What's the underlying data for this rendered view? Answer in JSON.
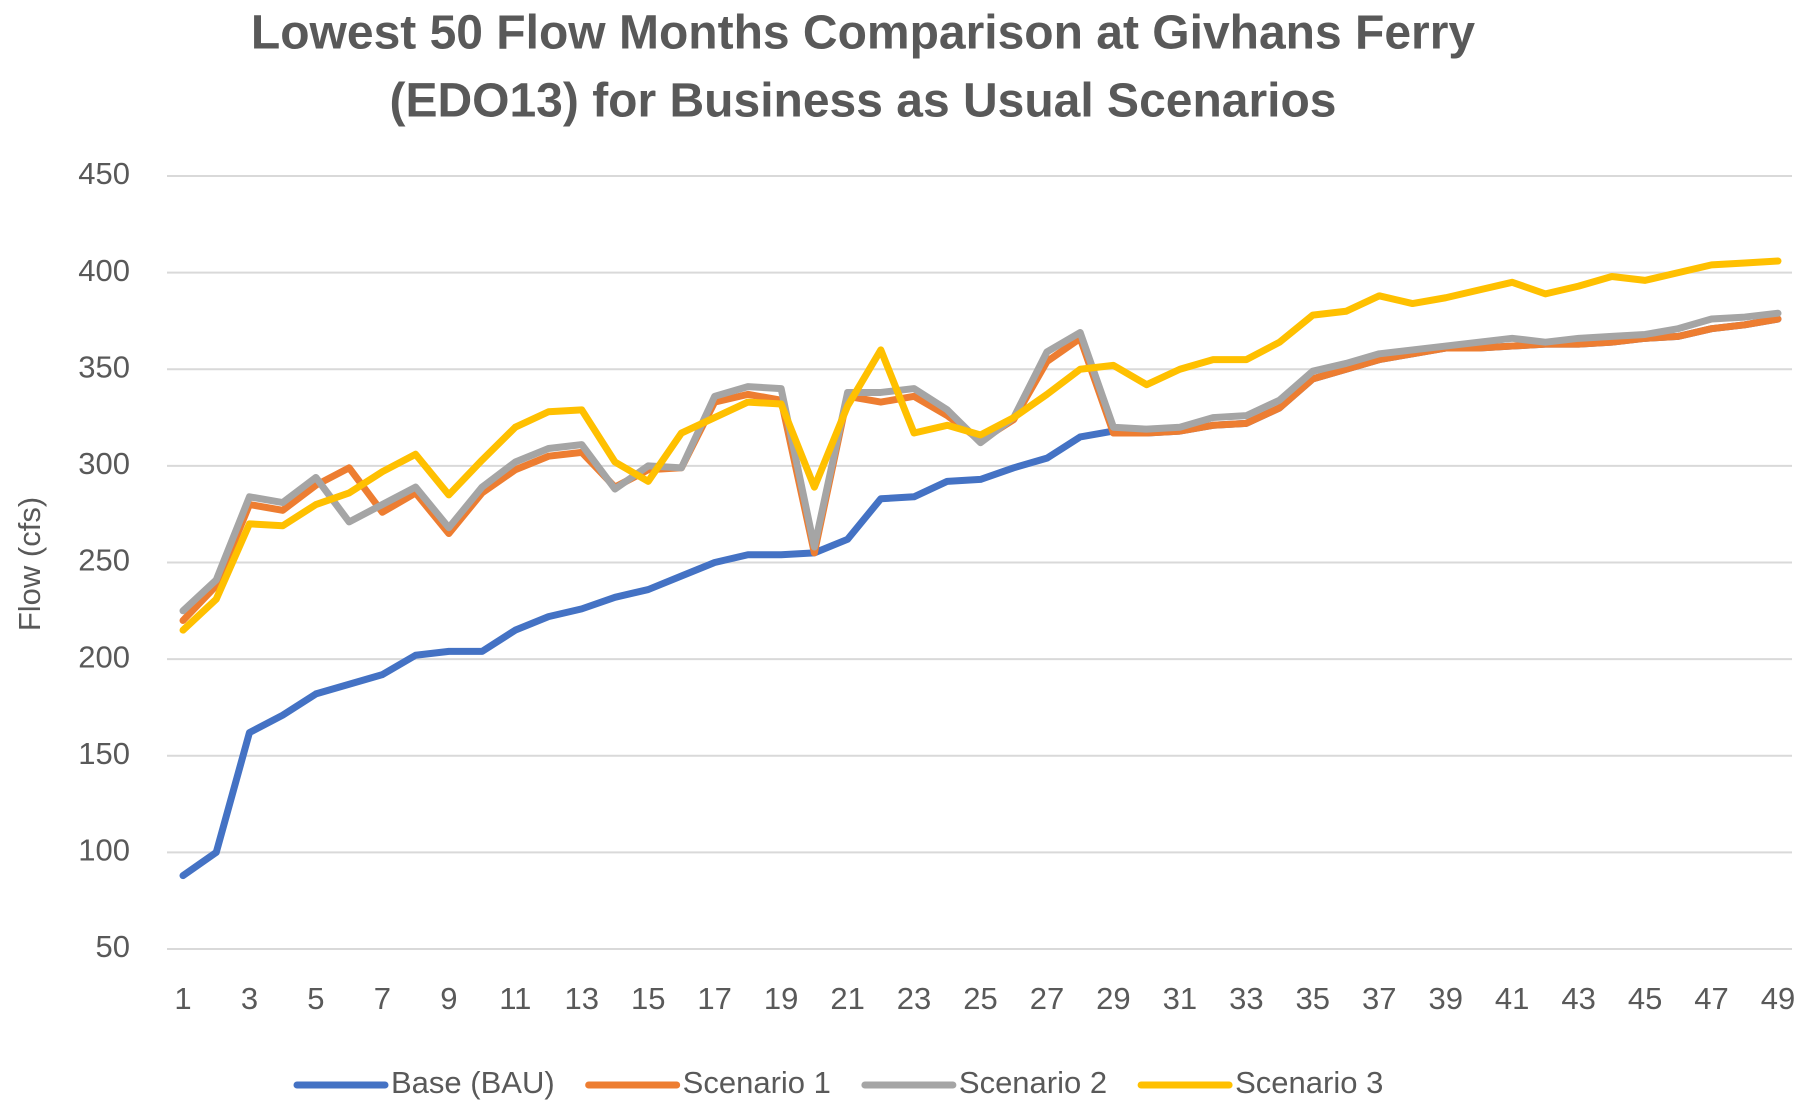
{
  "chart_data": {
    "type": "line",
    "title": [
      "Lowest 50 Flow Months Comparison at Givhans Ferry",
      "(EDO13) for Business as Usual Scenarios"
    ],
    "ylabel": "Flow (cfs)",
    "categories": [
      1,
      null,
      3,
      null,
      5,
      null,
      7,
      null,
      9,
      null,
      11,
      null,
      13,
      null,
      15,
      null,
      17,
      null,
      19,
      null,
      21,
      null,
      23,
      null,
      25,
      null,
      27,
      null,
      29,
      null,
      31,
      null,
      33,
      null,
      35,
      null,
      37,
      null,
      39,
      null,
      41,
      null,
      43,
      null,
      45,
      null,
      47,
      null,
      49
    ],
    "series": [
      {
        "name": "Base (BAU)",
        "color": "#4472c4",
        "values": [
          88,
          100,
          162,
          171,
          182,
          187,
          192,
          202,
          204,
          204,
          215,
          222,
          226,
          232,
          236,
          243,
          250,
          254,
          254,
          255,
          262,
          283,
          284,
          292,
          293,
          299,
          304,
          315,
          318,
          317,
          318,
          321,
          322,
          330,
          345,
          350,
          355,
          358,
          361,
          361,
          362,
          363,
          363,
          364,
          366,
          367,
          371,
          373,
          376
        ]
      },
      {
        "name": "Scenario 1",
        "color": "#ed7d31",
        "values": [
          220,
          238,
          280,
          277,
          290,
          299,
          276,
          286,
          265,
          286,
          298,
          305,
          307,
          289,
          298,
          299,
          333,
          337,
          334,
          255,
          336,
          333,
          336,
          326,
          313,
          324,
          354,
          366,
          317,
          317,
          318,
          321,
          322,
          330,
          345,
          350,
          355,
          358,
          361,
          361,
          362,
          363,
          363,
          364,
          366,
          367,
          371,
          373,
          376
        ]
      },
      {
        "name": "Scenario 2",
        "color": "#a5a5a5",
        "values": [
          225,
          241,
          284,
          281,
          294,
          271,
          280,
          289,
          268,
          289,
          302,
          309,
          311,
          288,
          300,
          299,
          336,
          341,
          340,
          258,
          338,
          338,
          340,
          329,
          312,
          325,
          359,
          369,
          320,
          319,
          320,
          325,
          326,
          334,
          349,
          353,
          358,
          360,
          362,
          364,
          366,
          364,
          366,
          367,
          368,
          371,
          376,
          377,
          379
        ]
      },
      {
        "name": "Scenario 3",
        "color": "#ffc000",
        "values": [
          215,
          231,
          270,
          269,
          280,
          286,
          297,
          306,
          285,
          303,
          320,
          328,
          329,
          302,
          292,
          317,
          325,
          333,
          332,
          289,
          331,
          360,
          317,
          321,
          316,
          325,
          337,
          350,
          352,
          342,
          350,
          355,
          355,
          364,
          378,
          380,
          388,
          384,
          387,
          391,
          395,
          389,
          393,
          398,
          396,
          400,
          404,
          405,
          406
        ]
      }
    ],
    "ylim": [
      50,
      450
    ],
    "yticks": [
      50,
      100,
      150,
      200,
      250,
      300,
      350,
      400,
      450
    ],
    "grid": true,
    "legend": "bottom"
  }
}
